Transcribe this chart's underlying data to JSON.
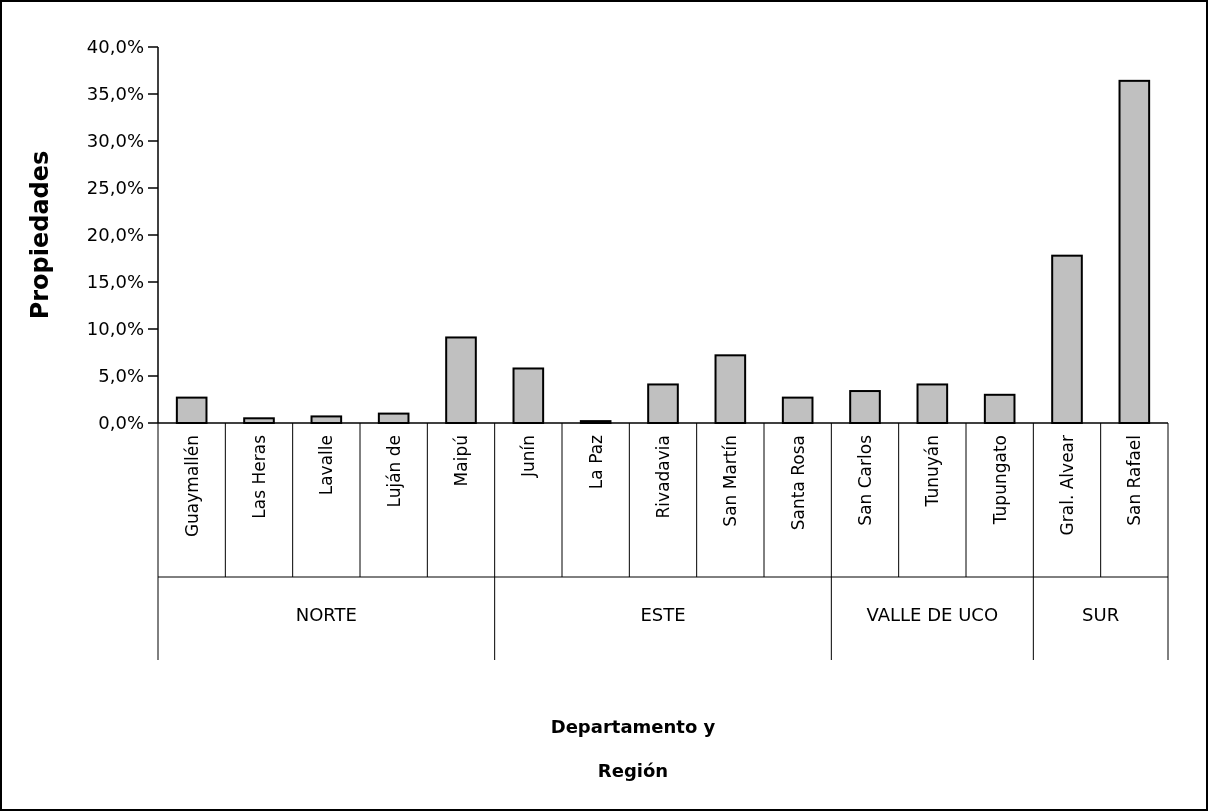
{
  "chart_data": {
    "type": "bar",
    "xlabel": "Departamento y Región",
    "ylabel": "Propiedades",
    "categories": [
      "Guaymallén",
      "Las Heras",
      "Lavalle",
      "Luján de",
      "Maipú",
      "Junín",
      "La Paz",
      "Rivadavia",
      "San Martín",
      "Santa Rosa",
      "San Carlos",
      "Tunuyán",
      "Tupungato",
      "Gral. Alvear",
      "San Rafael"
    ],
    "values": [
      2.7,
      0.5,
      0.7,
      1.0,
      9.1,
      5.8,
      0.2,
      4.1,
      7.2,
      2.7,
      3.4,
      4.1,
      3.0,
      17.8,
      36.4
    ],
    "color": "#c0c0c0",
    "ylim": [
      0,
      40
    ],
    "yticks": [
      {
        "value": 0,
        "label": "0,0%"
      },
      {
        "value": 5,
        "label": "5,0%"
      },
      {
        "value": 10,
        "label": "10,0%"
      },
      {
        "value": 15,
        "label": "15,0%"
      },
      {
        "value": 20,
        "label": "20,0%"
      },
      {
        "value": 25,
        "label": "25,0%"
      },
      {
        "value": 30,
        "label": "30,0%"
      },
      {
        "value": 35,
        "label": "35,0%"
      },
      {
        "value": 40,
        "label": "40,0%"
      }
    ],
    "annotations": [
      "NORTE",
      "ESTE",
      "VALLE DE UCO",
      "SUR"
    ]
  }
}
